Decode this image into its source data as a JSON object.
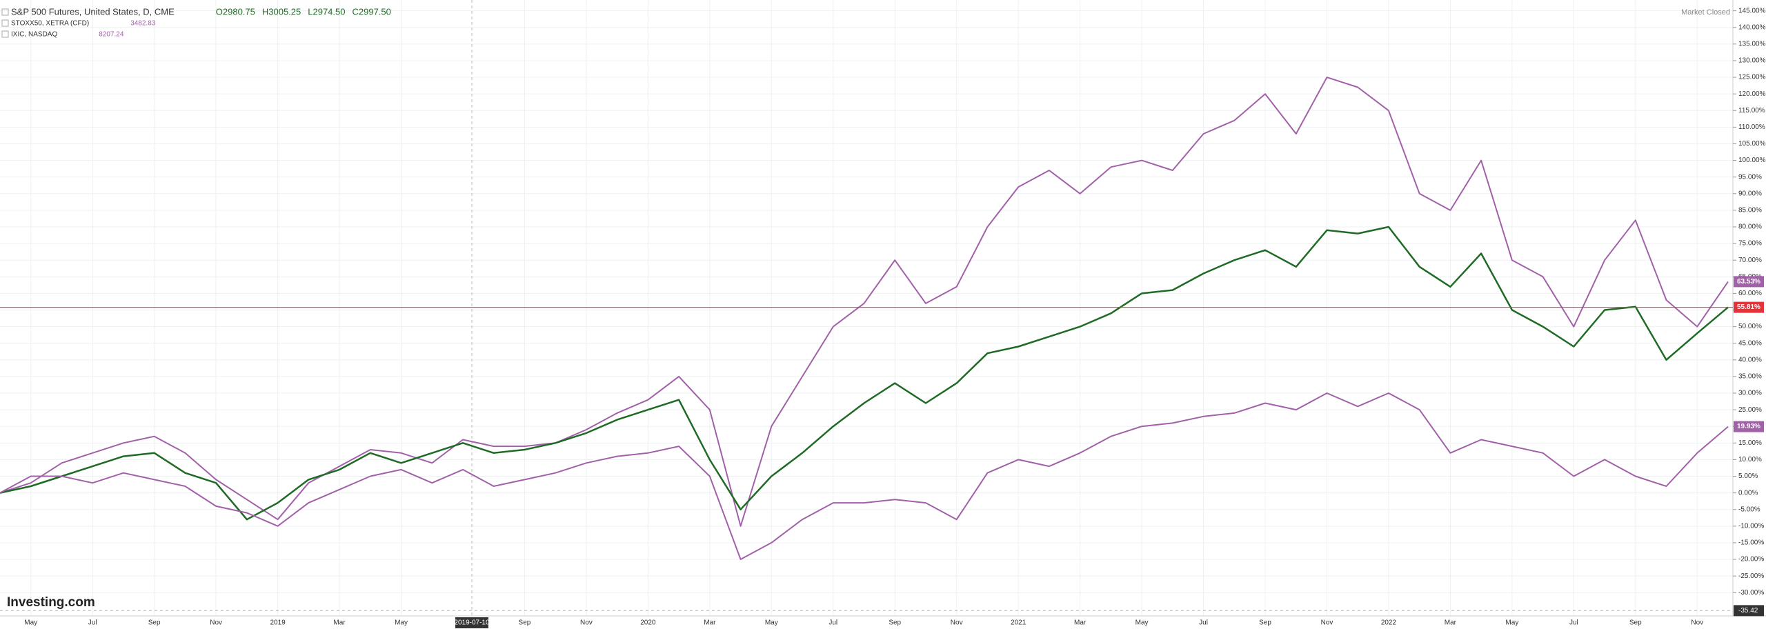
{
  "chart_data": {
    "type": "line",
    "status": "Market Closed",
    "watermark": "Investing.com",
    "x": [
      "2018-04",
      "2018-05",
      "2018-06",
      "2018-07",
      "2018-08",
      "2018-09",
      "2018-10",
      "2018-11",
      "2018-12",
      "2019-01",
      "2019-02",
      "2019-03",
      "2019-04",
      "2019-05",
      "2019-06",
      "2019-07",
      "2019-08",
      "2019-09",
      "2019-10",
      "2019-11",
      "2019-12",
      "2020-01",
      "2020-02",
      "2020-03",
      "2020-04",
      "2020-05",
      "2020-06",
      "2020-07",
      "2020-08",
      "2020-09",
      "2020-10",
      "2020-11",
      "2020-12",
      "2021-01",
      "2021-02",
      "2021-03",
      "2021-04",
      "2021-05",
      "2021-06",
      "2021-07",
      "2021-08",
      "2021-09",
      "2021-10",
      "2021-11",
      "2021-12",
      "2022-01",
      "2022-02",
      "2022-03",
      "2022-04",
      "2022-05",
      "2022-06",
      "2022-07",
      "2022-08",
      "2022-09",
      "2022-10",
      "2022-11",
      "2022-12"
    ],
    "series": [
      {
        "name": "IXIC, NASDAQ",
        "legend_value": "8207.24",
        "color": "#a160a8",
        "last_value_label": "63.53%",
        "values": [
          0,
          3,
          9,
          12,
          15,
          17,
          12,
          4,
          -2,
          -8,
          3,
          8,
          13,
          12,
          9,
          16,
          14,
          14,
          15,
          19,
          24,
          28,
          35,
          25,
          -10,
          20,
          35,
          50,
          57,
          70,
          57,
          62,
          80,
          92,
          97,
          90,
          98,
          100,
          97,
          108,
          112,
          120,
          108,
          125,
          122,
          115,
          90,
          85,
          100,
          70,
          65,
          50,
          70,
          82,
          58,
          50,
          63.53
        ]
      },
      {
        "name": "S&P 500 Futures, United States, D, CME",
        "ohlc": [
          "O2980.75",
          "H3005.25",
          "L2974.50",
          "C2997.50"
        ],
        "color": "#1f6b25",
        "badge_color": "#e0333a",
        "last_value_label": "55.81%",
        "values": [
          0,
          2,
          5,
          8,
          11,
          12,
          6,
          3,
          -8,
          -3,
          4,
          7,
          12,
          9,
          12,
          15,
          12,
          13,
          15,
          18,
          22,
          25,
          28,
          10,
          -5,
          5,
          12,
          20,
          27,
          33,
          27,
          33,
          42,
          44,
          47,
          50,
          54,
          60,
          61,
          66,
          70,
          73,
          68,
          79,
          78,
          80,
          68,
          62,
          72,
          55,
          50,
          44,
          55,
          56,
          40,
          48,
          55.81
        ]
      },
      {
        "name": "STOXX50, XETRA (CFD)",
        "legend_value": "3482.83",
        "color": "#a160a8",
        "last_value_label": "19.93%",
        "values": [
          0,
          5,
          5,
          3,
          6,
          4,
          2,
          -4,
          -6,
          -10,
          -3,
          1,
          5,
          7,
          3,
          7,
          2,
          4,
          6,
          9,
          11,
          12,
          14,
          5,
          -20,
          -15,
          -8,
          -3,
          -3,
          -2,
          -3,
          -8,
          6,
          10,
          8,
          12,
          17,
          20,
          21,
          23,
          24,
          27,
          25,
          30,
          26,
          30,
          25,
          12,
          16,
          14,
          12,
          5,
          10,
          5,
          2,
          12,
          19.93
        ]
      }
    ],
    "xlim": [
      "2018-04",
      "2022-12"
    ],
    "xticks": [
      {
        "value": "2018-05",
        "label": "May"
      },
      {
        "value": "2018-07",
        "label": "Jul"
      },
      {
        "value": "2018-09",
        "label": "Sep"
      },
      {
        "value": "2018-11",
        "label": "Nov"
      },
      {
        "value": "2019-01",
        "label": "2019"
      },
      {
        "value": "2019-03",
        "label": "Mar"
      },
      {
        "value": "2019-05",
        "label": "May"
      },
      {
        "value": "2019-09",
        "label": "Sep"
      },
      {
        "value": "2019-11",
        "label": "Nov"
      },
      {
        "value": "2020-01",
        "label": "2020"
      },
      {
        "value": "2020-03",
        "label": "Mar"
      },
      {
        "value": "2020-05",
        "label": "May"
      },
      {
        "value": "2020-07",
        "label": "Jul"
      },
      {
        "value": "2020-09",
        "label": "Sep"
      },
      {
        "value": "2020-11",
        "label": "Nov"
      },
      {
        "value": "2021-01",
        "label": "2021"
      },
      {
        "value": "2021-03",
        "label": "Mar"
      },
      {
        "value": "2021-05",
        "label": "May"
      },
      {
        "value": "2021-07",
        "label": "Jul"
      },
      {
        "value": "2021-09",
        "label": "Sep"
      },
      {
        "value": "2021-11",
        "label": "Nov"
      },
      {
        "value": "2022-01",
        "label": "2022"
      },
      {
        "value": "2022-03",
        "label": "Mar"
      },
      {
        "value": "2022-05",
        "label": "May"
      },
      {
        "value": "2022-07",
        "label": "Jul"
      },
      {
        "value": "2022-09",
        "label": "Sep"
      },
      {
        "value": "2022-11",
        "label": "Nov"
      }
    ],
    "ylim": [
      -37,
      147
    ],
    "yticks": [
      {
        "value": -30,
        "label": "-30.00%"
      },
      {
        "value": -25,
        "label": "-25.00%"
      },
      {
        "value": -20,
        "label": "-20.00%"
      },
      {
        "value": -15,
        "label": "-15.00%"
      },
      {
        "value": -10,
        "label": "-10.00%"
      },
      {
        "value": -5,
        "label": "-5.00%"
      },
      {
        "value": 0,
        "label": "0.00%"
      },
      {
        "value": 5,
        "label": "5.00%"
      },
      {
        "value": 10,
        "label": "10.00%"
      },
      {
        "value": 15,
        "label": "15.00%"
      },
      {
        "value": 20,
        "label": "20.00%"
      },
      {
        "value": 25,
        "label": "25.00%"
      },
      {
        "value": 30,
        "label": "30.00%"
      },
      {
        "value": 35,
        "label": "35.00%"
      },
      {
        "value": 40,
        "label": "40.00%"
      },
      {
        "value": 45,
        "label": "45.00%"
      },
      {
        "value": 50,
        "label": "50.00%"
      },
      {
        "value": 55,
        "label": "55.00%"
      },
      {
        "value": 60,
        "label": "60.00%"
      },
      {
        "value": 65,
        "label": "65.00%"
      },
      {
        "value": 70,
        "label": "70.00%"
      },
      {
        "value": 75,
        "label": "75.00%"
      },
      {
        "value": 80,
        "label": "80.00%"
      },
      {
        "value": 85,
        "label": "85.00%"
      },
      {
        "value": 90,
        "label": "90.00%"
      },
      {
        "value": 95,
        "label": "95.00%"
      },
      {
        "value": 100,
        "label": "100.00%"
      },
      {
        "value": 105,
        "label": "105.00%"
      },
      {
        "value": 110,
        "label": "110.00%"
      },
      {
        "value": 115,
        "label": "115.00%"
      },
      {
        "value": 120,
        "label": "120.00%"
      },
      {
        "value": 125,
        "label": "125.00%"
      },
      {
        "value": 130,
        "label": "130.00%"
      },
      {
        "value": 135,
        "label": "135.00%"
      },
      {
        "value": 140,
        "label": "140.00%"
      },
      {
        "value": 145,
        "label": "145.00%"
      }
    ],
    "grid": true,
    "crosshair": {
      "x": "2019-07-10",
      "y": -35.42
    }
  }
}
